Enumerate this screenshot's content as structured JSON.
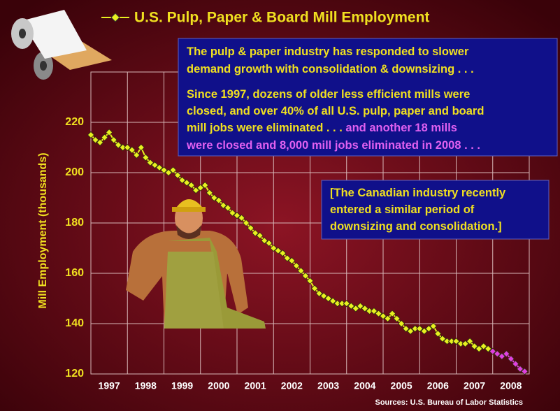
{
  "chart_data": {
    "type": "line",
    "title": "U.S. Pulp, Paper & Board Mill Employment",
    "y_label": "Mill Employment (thousands)",
    "source": "Sources: U.S. Bureau of Labor Statistics",
    "xlim": [
      1997,
      2009
    ],
    "xticks": [
      1997,
      1998,
      1999,
      2000,
      2001,
      2002,
      2003,
      2004,
      2005,
      2006,
      2007,
      2008
    ],
    "ylim": [
      120,
      240
    ],
    "yticks": [
      120,
      140,
      160,
      180,
      200,
      220
    ],
    "grid": true,
    "series": [
      {
        "color": "#e8f020",
        "x": [
          1997,
          1997.125,
          1997.25,
          1997.375,
          1997.5,
          1997.625,
          1997.75,
          1997.875,
          1998,
          1998.125,
          1998.25,
          1998.375,
          1998.5,
          1998.625,
          1998.75,
          1998.875,
          1999,
          1999.125,
          1999.25,
          1999.375,
          1999.5,
          1999.625,
          1999.75,
          1999.875,
          2000,
          2000.125,
          2000.25,
          2000.375,
          2000.5,
          2000.625,
          2000.75,
          2000.875,
          2001,
          2001.125,
          2001.25,
          2001.375,
          2001.5,
          2001.625,
          2001.75,
          2001.875,
          2002,
          2002.125,
          2002.25,
          2002.375,
          2002.5,
          2002.625,
          2002.75,
          2002.875,
          2003,
          2003.125,
          2003.25,
          2003.375,
          2003.5,
          2003.625,
          2003.75,
          2003.875,
          2004,
          2004.125,
          2004.25,
          2004.375,
          2004.5,
          2004.625,
          2004.75,
          2004.875,
          2005,
          2005.125,
          2005.25,
          2005.375,
          2005.5,
          2005.625,
          2005.75,
          2005.875,
          2006,
          2006.125,
          2006.25,
          2006.375,
          2006.5,
          2006.625,
          2006.75,
          2006.875,
          2007,
          2007.125,
          2007.25,
          2007.375,
          2007.5,
          2007.625,
          2007.75,
          2007.875
        ],
        "values": [
          215,
          213,
          212,
          214,
          216,
          213,
          211,
          210,
          210,
          209,
          207,
          210,
          206,
          204,
          203,
          202,
          201,
          200,
          201,
          199,
          197,
          196,
          195,
          193,
          194,
          195,
          192,
          190,
          189,
          187,
          186,
          184,
          183,
          182,
          180,
          178,
          176,
          175,
          173,
          172,
          170,
          169,
          168,
          166,
          165,
          163,
          161,
          159,
          157,
          154,
          152,
          151,
          150,
          149,
          148,
          148,
          148,
          147,
          146,
          147,
          146,
          145,
          145,
          144,
          143,
          142,
          144,
          142,
          140,
          138,
          137,
          138,
          138,
          137,
          138,
          139,
          136,
          134,
          133,
          133,
          133,
          132,
          132,
          133,
          131,
          130,
          131,
          130
        ]
      },
      {
        "color": "#e040e0",
        "x": [
          2008,
          2008.125,
          2008.25,
          2008.375,
          2008.5,
          2008.625,
          2008.75,
          2008.875
        ],
        "values": [
          129,
          128,
          127,
          128,
          126,
          124,
          122,
          121
        ]
      }
    ],
    "annotations": [
      {
        "lines": [
          [
            {
              "text": "The pulp & paper industry has responded to slower",
              "color": "#f0e020"
            }
          ],
          [
            {
              "text": "demand growth with consolidation & downsizing . . .",
              "color": "#f0e020"
            }
          ],
          [
            {
              "text": "Since 1997, dozens of older less efficient mills were",
              "color": "#f0e020"
            }
          ],
          [
            {
              "text": "closed, and over 40% of all U.S. pulp, paper and board",
              "color": "#f0e020"
            }
          ],
          [
            {
              "text": "mill jobs were eliminated . . . ",
              "color": "#f0e020"
            },
            {
              "text": "and another 18 mills",
              "color": "#e060f0"
            }
          ],
          [
            {
              "text": "were closed and 8,000 mill jobs eliminated in 2008 . . .",
              "color": "#e060f0"
            }
          ]
        ]
      },
      {
        "lines": [
          [
            {
              "text": "[The Canadian industry recently",
              "color": "#f0e020"
            }
          ],
          [
            {
              "text": "entered a similar period of",
              "color": "#f0e020"
            }
          ],
          [
            {
              "text": "downsizing and consolidation.]",
              "color": "#f0e020"
            }
          ]
        ]
      }
    ]
  }
}
